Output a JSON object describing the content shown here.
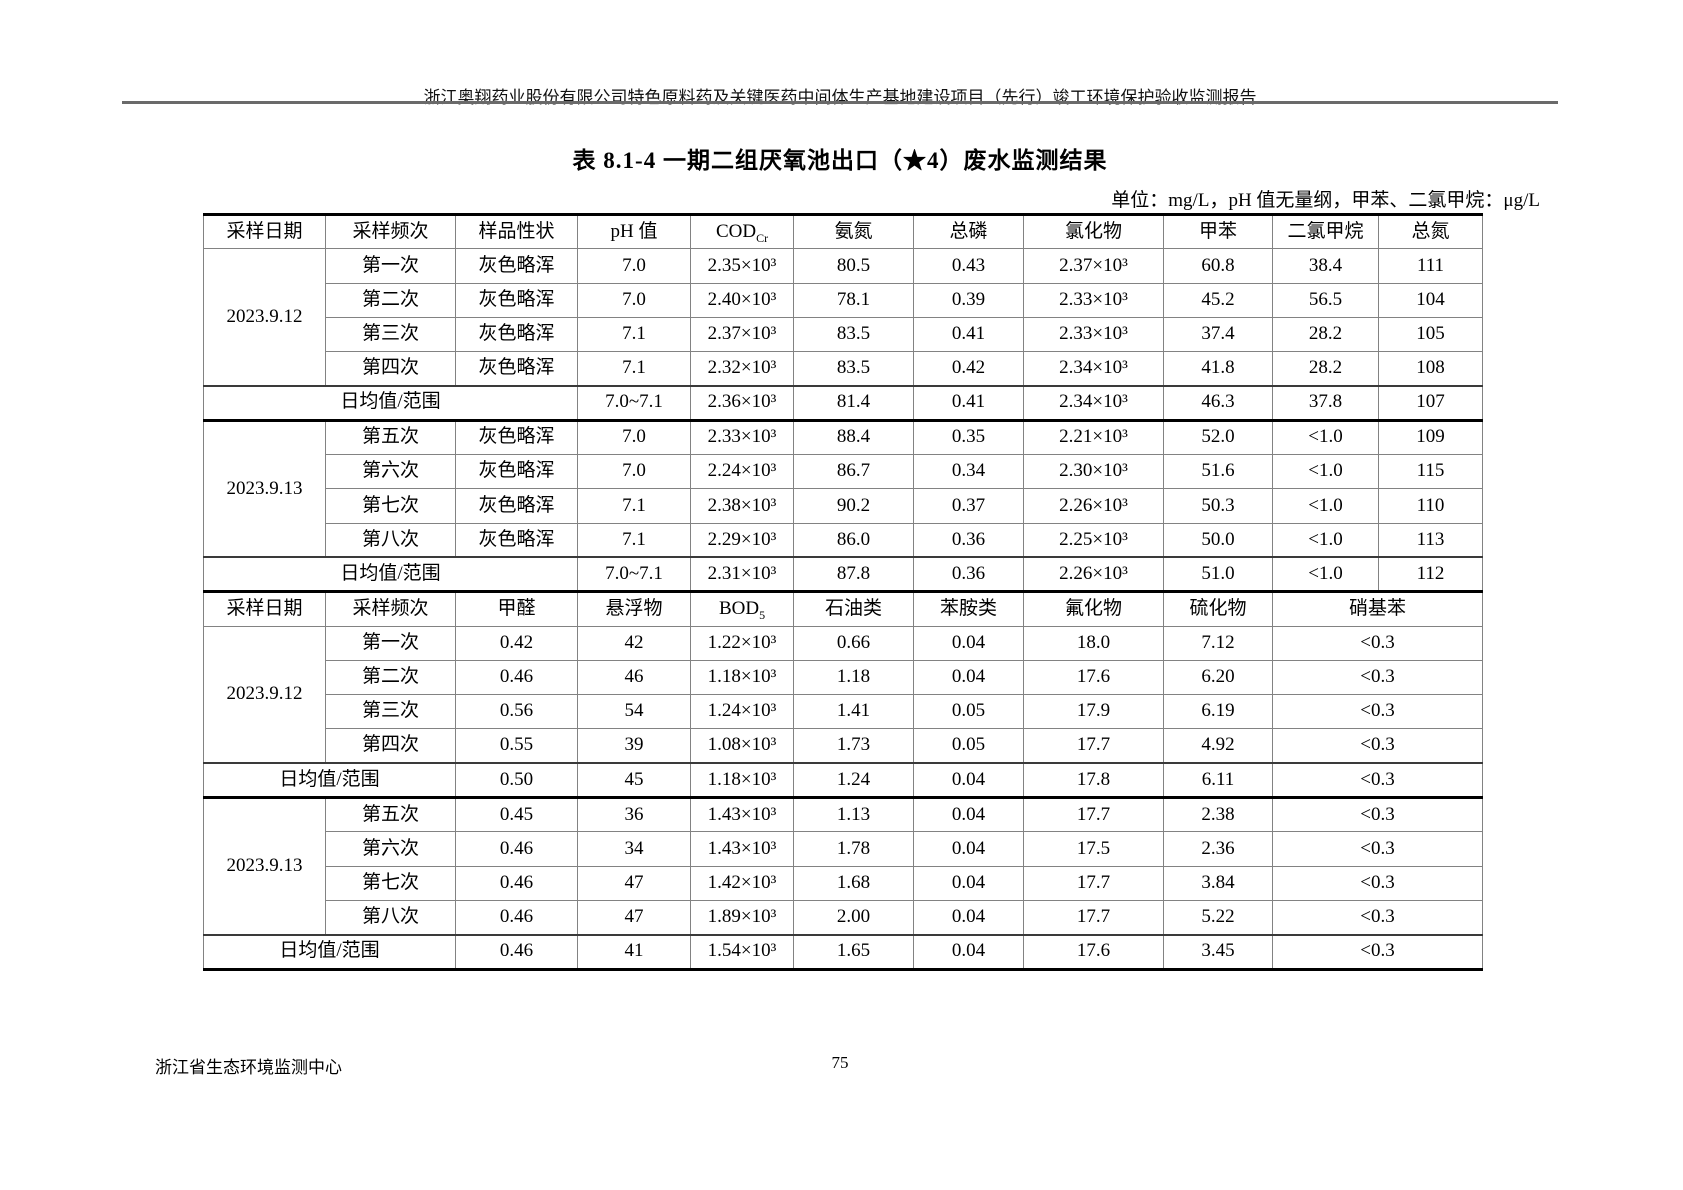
{
  "page": {
    "header": "浙江奥翔药业股份有限公司特色原料药及关键医药中间体生产基地建设项目（先行）竣工环境保护验收监测报告",
    "title": "表 8.1-4  一期二组厌氧池出口（★4）废水监测结果",
    "unit_note": "单位：mg/L，pH 值无量纲，甲苯、二氯甲烷：μg/L",
    "footer_org": "浙江省生态环境监测中心",
    "page_number": "75"
  },
  "table": {
    "sections": [
      {
        "header": [
          {
            "t": "采样日期"
          },
          {
            "t": "采样频次"
          },
          {
            "t": "样品性状"
          },
          {
            "t": "pH 值"
          },
          {
            "t": "COD",
            "sub": "Cr"
          },
          {
            "t": "氨氮"
          },
          {
            "t": "总磷"
          },
          {
            "t": "氯化物"
          },
          {
            "t": "甲苯"
          },
          {
            "t": "二氯甲烷"
          },
          {
            "t": "总氮"
          }
        ],
        "rows": [
          {
            "cells": [
              {
                "t": "2023.9.12",
                "rowspan": 4
              },
              {
                "t": "第一次"
              },
              {
                "t": "灰色略浑"
              },
              {
                "t": "7.0"
              },
              {
                "t": "2.35×10³"
              },
              {
                "t": "80.5"
              },
              {
                "t": "0.43"
              },
              {
                "t": "2.37×10³"
              },
              {
                "t": "60.8"
              },
              {
                "t": "38.4"
              },
              {
                "t": "111"
              }
            ]
          },
          {
            "cells": [
              {
                "t": "第二次"
              },
              {
                "t": "灰色略浑"
              },
              {
                "t": "7.0"
              },
              {
                "t": "2.40×10³"
              },
              {
                "t": "78.1"
              },
              {
                "t": "0.39"
              },
              {
                "t": "2.33×10³"
              },
              {
                "t": "45.2"
              },
              {
                "t": "56.5"
              },
              {
                "t": "104"
              }
            ]
          },
          {
            "cells": [
              {
                "t": "第三次"
              },
              {
                "t": "灰色略浑"
              },
              {
                "t": "7.1"
              },
              {
                "t": "2.37×10³"
              },
              {
                "t": "83.5"
              },
              {
                "t": "0.41"
              },
              {
                "t": "2.33×10³"
              },
              {
                "t": "37.4"
              },
              {
                "t": "28.2"
              },
              {
                "t": "105"
              }
            ]
          },
          {
            "cells": [
              {
                "t": "第四次"
              },
              {
                "t": "灰色略浑"
              },
              {
                "t": "7.1"
              },
              {
                "t": "2.32×10³"
              },
              {
                "t": "83.5"
              },
              {
                "t": "0.42"
              },
              {
                "t": "2.34×10³"
              },
              {
                "t": "41.8"
              },
              {
                "t": "28.2"
              },
              {
                "t": "108"
              }
            ]
          },
          {
            "avg": true,
            "cells": [
              {
                "t": "日均值/范围",
                "colspan": 3
              },
              {
                "t": "7.0~7.1"
              },
              {
                "t": "2.36×10³"
              },
              {
                "t": "81.4"
              },
              {
                "t": "0.41"
              },
              {
                "t": "2.34×10³"
              },
              {
                "t": "46.3"
              },
              {
                "t": "37.8"
              },
              {
                "t": "107"
              }
            ]
          },
          {
            "cells": [
              {
                "t": "2023.9.13",
                "rowspan": 4
              },
              {
                "t": "第五次"
              },
              {
                "t": "灰色略浑"
              },
              {
                "t": "7.0"
              },
              {
                "t": "2.33×10³"
              },
              {
                "t": "88.4"
              },
              {
                "t": "0.35"
              },
              {
                "t": "2.21×10³"
              },
              {
                "t": "52.0"
              },
              {
                "t": "<1.0"
              },
              {
                "t": "109"
              }
            ]
          },
          {
            "cells": [
              {
                "t": "第六次"
              },
              {
                "t": "灰色略浑"
              },
              {
                "t": "7.0"
              },
              {
                "t": "2.24×10³"
              },
              {
                "t": "86.7"
              },
              {
                "t": "0.34"
              },
              {
                "t": "2.30×10³"
              },
              {
                "t": "51.6"
              },
              {
                "t": "<1.0"
              },
              {
                "t": "115"
              }
            ]
          },
          {
            "cells": [
              {
                "t": "第七次"
              },
              {
                "t": "灰色略浑"
              },
              {
                "t": "7.1"
              },
              {
                "t": "2.38×10³"
              },
              {
                "t": "90.2"
              },
              {
                "t": "0.37"
              },
              {
                "t": "2.26×10³"
              },
              {
                "t": "50.3"
              },
              {
                "t": "<1.0"
              },
              {
                "t": "110"
              }
            ]
          },
          {
            "cells": [
              {
                "t": "第八次"
              },
              {
                "t": "灰色略浑"
              },
              {
                "t": "7.1"
              },
              {
                "t": "2.29×10³"
              },
              {
                "t": "86.0"
              },
              {
                "t": "0.36"
              },
              {
                "t": "2.25×10³"
              },
              {
                "t": "50.0"
              },
              {
                "t": "<1.0"
              },
              {
                "t": "113"
              }
            ]
          },
          {
            "avg": true,
            "cells": [
              {
                "t": "日均值/范围",
                "colspan": 3
              },
              {
                "t": "7.0~7.1"
              },
              {
                "t": "2.31×10³"
              },
              {
                "t": "87.8"
              },
              {
                "t": "0.36"
              },
              {
                "t": "2.26×10³"
              },
              {
                "t": "51.0"
              },
              {
                "t": "<1.0"
              },
              {
                "t": "112"
              }
            ]
          }
        ]
      },
      {
        "header": [
          {
            "t": "采样日期"
          },
          {
            "t": "采样频次"
          },
          {
            "t": "甲醛"
          },
          {
            "t": "悬浮物"
          },
          {
            "t": "BOD",
            "sub": "5"
          },
          {
            "t": "石油类"
          },
          {
            "t": "苯胺类"
          },
          {
            "t": "氟化物"
          },
          {
            "t": "硫化物"
          },
          {
            "t": "硝基苯",
            "colspan": 2
          }
        ],
        "rows": [
          {
            "cells": [
              {
                "t": "2023.9.12",
                "rowspan": 4
              },
              {
                "t": "第一次"
              },
              {
                "t": "0.42"
              },
              {
                "t": "42"
              },
              {
                "t": "1.22×10³"
              },
              {
                "t": "0.66"
              },
              {
                "t": "0.04"
              },
              {
                "t": "18.0"
              },
              {
                "t": "7.12"
              },
              {
                "t": "<0.3",
                "colspan": 2
              }
            ]
          },
          {
            "cells": [
              {
                "t": "第二次"
              },
              {
                "t": "0.46"
              },
              {
                "t": "46"
              },
              {
                "t": "1.18×10³"
              },
              {
                "t": "1.18"
              },
              {
                "t": "0.04"
              },
              {
                "t": "17.6"
              },
              {
                "t": "6.20"
              },
              {
                "t": "<0.3",
                "colspan": 2
              }
            ]
          },
          {
            "cells": [
              {
                "t": "第三次"
              },
              {
                "t": "0.56"
              },
              {
                "t": "54"
              },
              {
                "t": "1.24×10³"
              },
              {
                "t": "1.41"
              },
              {
                "t": "0.05"
              },
              {
                "t": "17.9"
              },
              {
                "t": "6.19"
              },
              {
                "t": "<0.3",
                "colspan": 2
              }
            ]
          },
          {
            "cells": [
              {
                "t": "第四次"
              },
              {
                "t": "0.55"
              },
              {
                "t": "39"
              },
              {
                "t": "1.08×10³"
              },
              {
                "t": "1.73"
              },
              {
                "t": "0.05"
              },
              {
                "t": "17.7"
              },
              {
                "t": "4.92"
              },
              {
                "t": "<0.3",
                "colspan": 2
              }
            ]
          },
          {
            "avg": true,
            "cells": [
              {
                "t": "日均值/范围",
                "colspan": 2
              },
              {
                "t": "0.50"
              },
              {
                "t": "45"
              },
              {
                "t": "1.18×10³"
              },
              {
                "t": "1.24"
              },
              {
                "t": "0.04"
              },
              {
                "t": "17.8"
              },
              {
                "t": "6.11"
              },
              {
                "t": "<0.3",
                "colspan": 2
              }
            ]
          },
          {
            "cells": [
              {
                "t": "2023.9.13",
                "rowspan": 4
              },
              {
                "t": "第五次"
              },
              {
                "t": "0.45"
              },
              {
                "t": "36"
              },
              {
                "t": "1.43×10³"
              },
              {
                "t": "1.13"
              },
              {
                "t": "0.04"
              },
              {
                "t": "17.7"
              },
              {
                "t": "2.38"
              },
              {
                "t": "<0.3",
                "colspan": 2
              }
            ]
          },
          {
            "cells": [
              {
                "t": "第六次"
              },
              {
                "t": "0.46"
              },
              {
                "t": "34"
              },
              {
                "t": "1.43×10³"
              },
              {
                "t": "1.78"
              },
              {
                "t": "0.04"
              },
              {
                "t": "17.5"
              },
              {
                "t": "2.36"
              },
              {
                "t": "<0.3",
                "colspan": 2
              }
            ]
          },
          {
            "cells": [
              {
                "t": "第七次"
              },
              {
                "t": "0.46"
              },
              {
                "t": "47"
              },
              {
                "t": "1.42×10³"
              },
              {
                "t": "1.68"
              },
              {
                "t": "0.04"
              },
              {
                "t": "17.7"
              },
              {
                "t": "3.84"
              },
              {
                "t": "<0.3",
                "colspan": 2
              }
            ]
          },
          {
            "cells": [
              {
                "t": "第八次"
              },
              {
                "t": "0.46"
              },
              {
                "t": "47"
              },
              {
                "t": "1.89×10³"
              },
              {
                "t": "2.00"
              },
              {
                "t": "0.04"
              },
              {
                "t": "17.7"
              },
              {
                "t": "5.22"
              },
              {
                "t": "<0.3",
                "colspan": 2
              }
            ]
          },
          {
            "avg": true,
            "cells": [
              {
                "t": "日均值/范围",
                "colspan": 2
              },
              {
                "t": "0.46"
              },
              {
                "t": "41"
              },
              {
                "t": "1.54×10³"
              },
              {
                "t": "1.65"
              },
              {
                "t": "0.04"
              },
              {
                "t": "17.6"
              },
              {
                "t": "3.45"
              },
              {
                "t": "<0.3",
                "colspan": 2
              }
            ]
          }
        ]
      }
    ]
  }
}
